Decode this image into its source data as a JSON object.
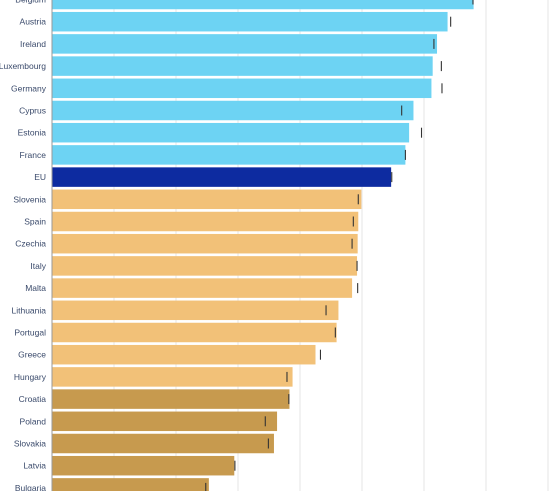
{
  "chart_data": {
    "type": "bar",
    "orientation": "horizontal",
    "title": "",
    "xlabel": "",
    "ylabel": "",
    "xlim": [
      0,
      80
    ],
    "grid": true,
    "legend": "none",
    "colors": {
      "above_eu": "#6dd3f3",
      "eu": "#0d2ba0",
      "mid": "#f2c178",
      "low": "#c79a4e",
      "marker": "#333333",
      "grid": "#e6e6e6",
      "axis": "#999999"
    },
    "categories": [
      "Belgium",
      "Austria",
      "Ireland",
      "Luxembourg",
      "Germany",
      "Cyprus",
      "Estonia",
      "France",
      "EU",
      "Slovenia",
      "Spain",
      "Czechia",
      "Italy",
      "Malta",
      "Lithuania",
      "Portugal",
      "Greece",
      "Hungary",
      "Croatia",
      "Poland",
      "Slovakia",
      "Latvia",
      "Bulgaria"
    ],
    "groups": [
      "above_eu",
      "above_eu",
      "above_eu",
      "above_eu",
      "above_eu",
      "above_eu",
      "above_eu",
      "above_eu",
      "eu",
      "mid",
      "mid",
      "mid",
      "mid",
      "mid",
      "mid",
      "mid",
      "mid",
      "mid",
      "low",
      "low",
      "low",
      "low",
      "low"
    ],
    "values": [
      68.0,
      63.8,
      62.1,
      61.4,
      61.2,
      58.3,
      57.6,
      57.0,
      54.7,
      49.9,
      49.4,
      49.3,
      49.2,
      48.4,
      46.2,
      45.9,
      42.5,
      38.8,
      38.3,
      36.3,
      35.8,
      29.4,
      25.3
    ],
    "reference_values": [
      67.9,
      64.3,
      61.6,
      62.8,
      62.9,
      56.4,
      59.6,
      57.0,
      54.8,
      49.4,
      48.6,
      48.4,
      49.2,
      49.3,
      44.2,
      45.7,
      43.3,
      37.9,
      38.2,
      34.4,
      34.9,
      29.5,
      24.8
    ]
  }
}
